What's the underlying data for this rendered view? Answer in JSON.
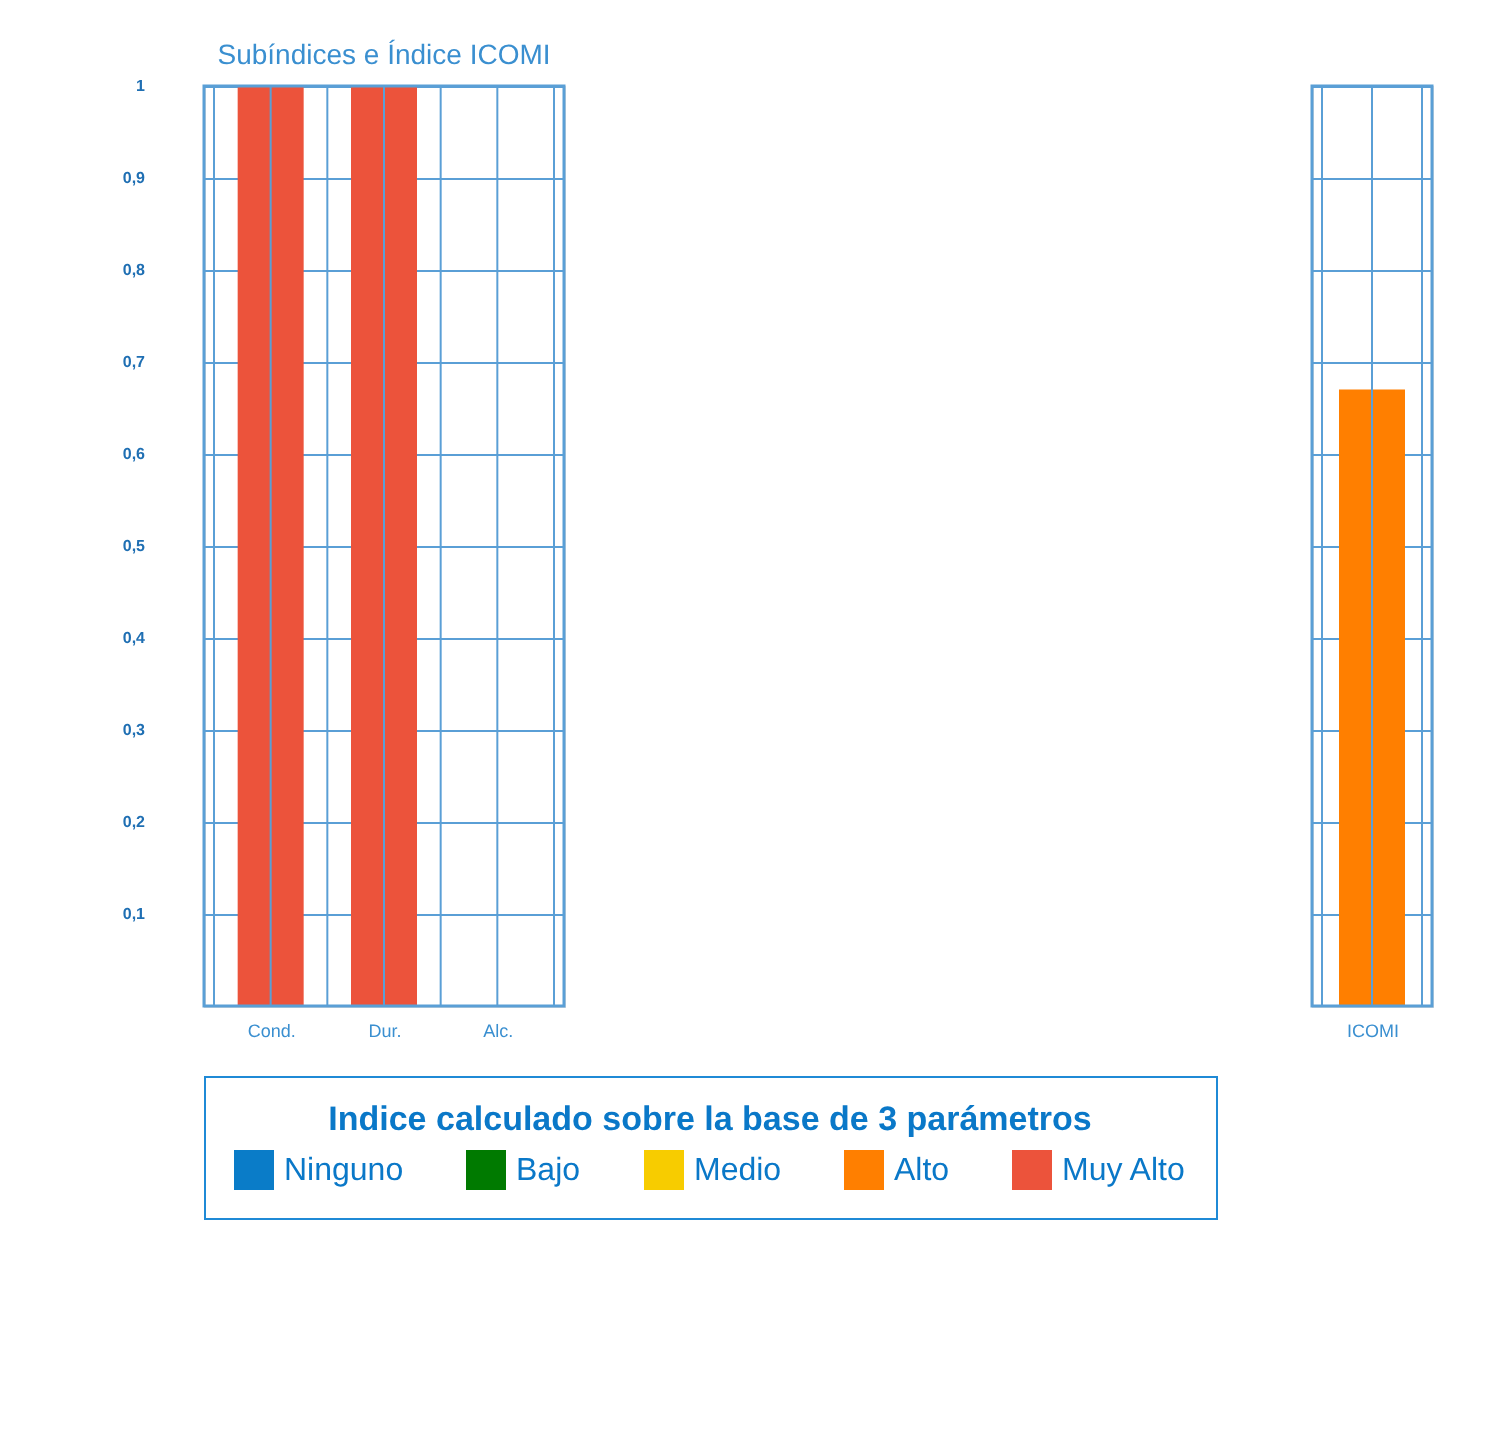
{
  "chart_data": [
    {
      "type": "bar",
      "title": "Subíndices e Índice ICOMI",
      "categories": [
        "Cond.",
        "Dur.",
        "Alc."
      ],
      "series": [
        {
          "name": "Ninguno",
          "color": "#0a7cc8",
          "values": [
            null,
            null,
            null
          ]
        },
        {
          "name": "Bajo",
          "color": "#007a00",
          "values": [
            null,
            null,
            null
          ]
        },
        {
          "name": "Medio",
          "color": "#f7cc00",
          "values": [
            null,
            null,
            null
          ]
        },
        {
          "name": "Alto",
          "color": "#ff7f00",
          "values": [
            null,
            null,
            null
          ]
        },
        {
          "name": "Muy Alto",
          "color": "#ec533b",
          "values": [
            1,
            1,
            null
          ]
        }
      ],
      "ylim": [
        0,
        1
      ],
      "yticks": [
        {
          "value": 0.1,
          "label": "0,1"
        },
        {
          "value": 0.2,
          "label": "0,2"
        },
        {
          "value": 0.3,
          "label": "0,3"
        },
        {
          "value": 0.4,
          "label": "0,4"
        },
        {
          "value": 0.5,
          "label": "0,5"
        },
        {
          "value": 0.6,
          "label": "0,6"
        },
        {
          "value": 0.7,
          "label": "0,7"
        },
        {
          "value": 0.8,
          "label": "0,8"
        },
        {
          "value": 0.9,
          "label": "0,9"
        },
        {
          "value": 1,
          "label": "1"
        }
      ],
      "grid": true,
      "legend": "bottom",
      "legend_title": "Indice calculado sobre la base de 3 parámetros"
    },
    {
      "type": "bar",
      "categories": [
        "ICOMI"
      ],
      "series": [
        {
          "color": "#ff7f00",
          "values": [
            0.67
          ]
        }
      ],
      "ylim": [
        0,
        1
      ],
      "yticks": [
        0.1,
        0.2,
        0.3,
        0.4,
        0.5,
        0.6,
        0.7,
        0.8,
        0.9,
        1
      ],
      "grid": true,
      "tick_labels": "x"
    }
  ]
}
